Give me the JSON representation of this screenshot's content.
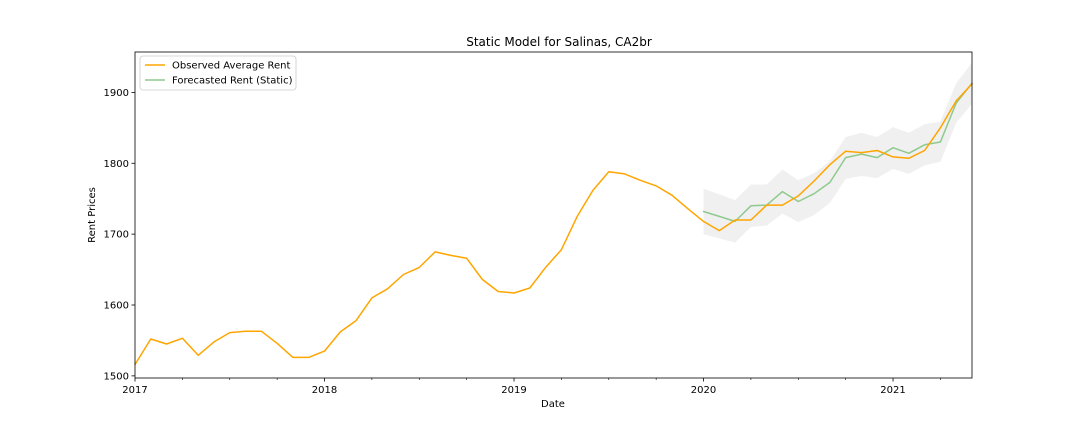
{
  "chart_data": {
    "type": "line",
    "title": "Static Model for Salinas, CA2br",
    "xlabel": "Date",
    "ylabel": "Rent Prices",
    "xlim": [
      "2017-01",
      "2021-06"
    ],
    "ylim": [
      1497,
      1957
    ],
    "x_ticks": [
      "2017",
      "2018",
      "2019",
      "2020",
      "2021"
    ],
    "y_ticks": [
      1500,
      1600,
      1700,
      1800,
      1900
    ],
    "grid": false,
    "legend_position": "top-left",
    "series": [
      {
        "name": "Observed Average Rent",
        "color": "#FFA500",
        "x": [
          "2017-01",
          "2017-02",
          "2017-03",
          "2017-04",
          "2017-05",
          "2017-06",
          "2017-07",
          "2017-08",
          "2017-09",
          "2017-10",
          "2017-11",
          "2017-12",
          "2018-01",
          "2018-02",
          "2018-03",
          "2018-04",
          "2018-05",
          "2018-06",
          "2018-07",
          "2018-08",
          "2018-09",
          "2018-10",
          "2018-11",
          "2018-12",
          "2019-01",
          "2019-02",
          "2019-03",
          "2019-04",
          "2019-05",
          "2019-06",
          "2019-07",
          "2019-08",
          "2019-09",
          "2019-10",
          "2019-11",
          "2019-12",
          "2020-01",
          "2020-02",
          "2020-03",
          "2020-04",
          "2020-05",
          "2020-06",
          "2020-07",
          "2020-08",
          "2020-09",
          "2020-10",
          "2020-11",
          "2020-12",
          "2021-01",
          "2021-02",
          "2021-03",
          "2021-04",
          "2021-05",
          "2021-06"
        ],
        "values": [
          1516,
          1552,
          1545,
          1553,
          1529,
          1548,
          1561,
          1563,
          1563,
          1546,
          1526,
          1526,
          1535,
          1562,
          1578,
          1610,
          1623,
          1643,
          1653,
          1675,
          1670,
          1666,
          1636,
          1619,
          1617,
          1624,
          1653,
          1678,
          1725,
          1762,
          1788,
          1785,
          1776,
          1768,
          1755,
          1736,
          1718,
          1705,
          1720,
          1720,
          1741,
          1741,
          1754,
          1775,
          1798,
          1817,
          1815,
          1818,
          1809,
          1807,
          1818,
          1850,
          1888,
          1912
        ]
      },
      {
        "name": "Forecasted Rent (Static)",
        "color": "#8ec98e",
        "x": [
          "2020-01",
          "2020-02",
          "2020-03",
          "2020-04",
          "2020-05",
          "2020-06",
          "2020-07",
          "2020-08",
          "2020-09",
          "2020-10",
          "2020-11",
          "2020-12",
          "2021-01",
          "2021-02",
          "2021-03",
          "2021-04",
          "2021-05",
          "2021-06"
        ],
        "values": [
          1732,
          1725,
          1718,
          1740,
          1741,
          1760,
          1746,
          1757,
          1773,
          1808,
          1813,
          1808,
          1822,
          1814,
          1826,
          1830,
          1885,
          1913
        ],
        "ci_lower": [
          1700,
          1694,
          1688,
          1710,
          1712,
          1729,
          1717,
          1727,
          1744,
          1778,
          1782,
          1779,
          1792,
          1785,
          1797,
          1802,
          1857,
          1884
        ],
        "ci_upper": [
          1764,
          1756,
          1748,
          1770,
          1770,
          1791,
          1776,
          1786,
          1803,
          1837,
          1843,
          1837,
          1851,
          1843,
          1855,
          1859,
          1913,
          1942
        ]
      }
    ],
    "ci_color": "#d3d3d3"
  }
}
